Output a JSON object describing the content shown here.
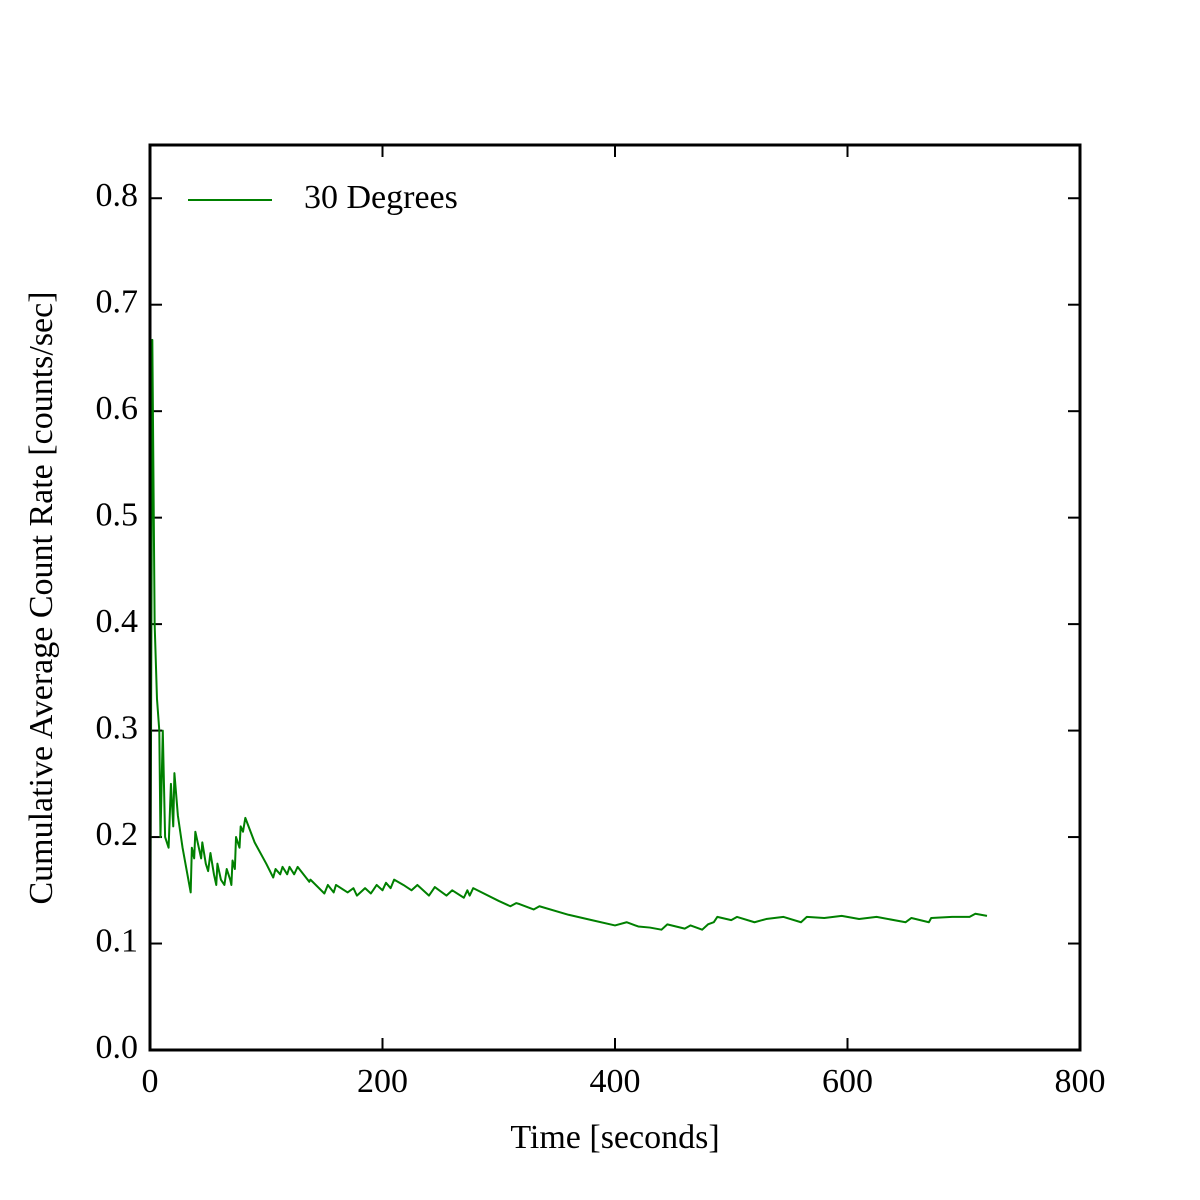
{
  "chart_data": {
    "type": "line",
    "xlabel": "Time [seconds]",
    "ylabel": "Cumulative Average Count Rate [counts/sec]",
    "xlim": [
      0,
      800
    ],
    "xticks": [
      0,
      200,
      400,
      600,
      800
    ],
    "ylim": [
      0,
      0.85
    ],
    "yticks": [
      {
        "value": 0,
        "label": "0.0"
      },
      0.1,
      0.2,
      0.3,
      0.4,
      0.5,
      0.6,
      0.7,
      0.8
    ],
    "legend": "upper left",
    "grid": false,
    "x": [
      0,
      2,
      4,
      6,
      8,
      9,
      11,
      13,
      16,
      18,
      20,
      21,
      24,
      28,
      33,
      35,
      36,
      38,
      39,
      42,
      44,
      45,
      48,
      50,
      52,
      55,
      57,
      58,
      61,
      64,
      66,
      69,
      70,
      71,
      73,
      74,
      77,
      78,
      80,
      82,
      90,
      100,
      106,
      108,
      112,
      114,
      118,
      120,
      124,
      127,
      137,
      138,
      150,
      153,
      158,
      160,
      170,
      175,
      178,
      185,
      190,
      195,
      200,
      203,
      207,
      210,
      218,
      225,
      230,
      240,
      245,
      255,
      260,
      270,
      273,
      275,
      278,
      300,
      310,
      315,
      318,
      330,
      335,
      360,
      380,
      400,
      410,
      420,
      430,
      440,
      445,
      460,
      465,
      475,
      480,
      485,
      488,
      500,
      505,
      520,
      530,
      545,
      560,
      565,
      580,
      595,
      610,
      625,
      650,
      655,
      670,
      672,
      690,
      705,
      710,
      720
    ],
    "series": [
      {
        "name": "30 Degrees",
        "color": "#008000",
        "values": [
          0,
          0.667,
          0.4,
          0.33,
          0.3,
          0.2,
          0.3,
          0.2,
          0.19,
          0.25,
          0.21,
          0.26,
          0.22,
          0.19,
          0.16,
          0.148,
          0.19,
          0.18,
          0.205,
          0.19,
          0.18,
          0.195,
          0.175,
          0.168,
          0.185,
          0.165,
          0.155,
          0.175,
          0.16,
          0.155,
          0.17,
          0.16,
          0.155,
          0.178,
          0.17,
          0.2,
          0.19,
          0.21,
          0.205,
          0.218,
          0.195,
          0.175,
          0.162,
          0.17,
          0.165,
          0.172,
          0.165,
          0.172,
          0.165,
          0.172,
          0.158,
          0.16,
          0.147,
          0.155,
          0.148,
          0.155,
          0.148,
          0.152,
          0.145,
          0.152,
          0.147,
          0.155,
          0.15,
          0.157,
          0.152,
          0.16,
          0.155,
          0.15,
          0.155,
          0.145,
          0.153,
          0.145,
          0.15,
          0.143,
          0.15,
          0.145,
          0.152,
          0.14,
          0.135,
          0.138,
          0.137,
          0.132,
          0.135,
          0.127,
          0.122,
          0.117,
          0.12,
          0.116,
          0.115,
          0.113,
          0.118,
          0.114,
          0.117,
          0.113,
          0.118,
          0.12,
          0.125,
          0.122,
          0.125,
          0.12,
          0.123,
          0.125,
          0.12,
          0.125,
          0.124,
          0.126,
          0.123,
          0.125,
          0.12,
          0.124,
          0.12,
          0.124,
          0.125,
          0.125,
          0.128,
          0.126
        ]
      }
    ]
  }
}
